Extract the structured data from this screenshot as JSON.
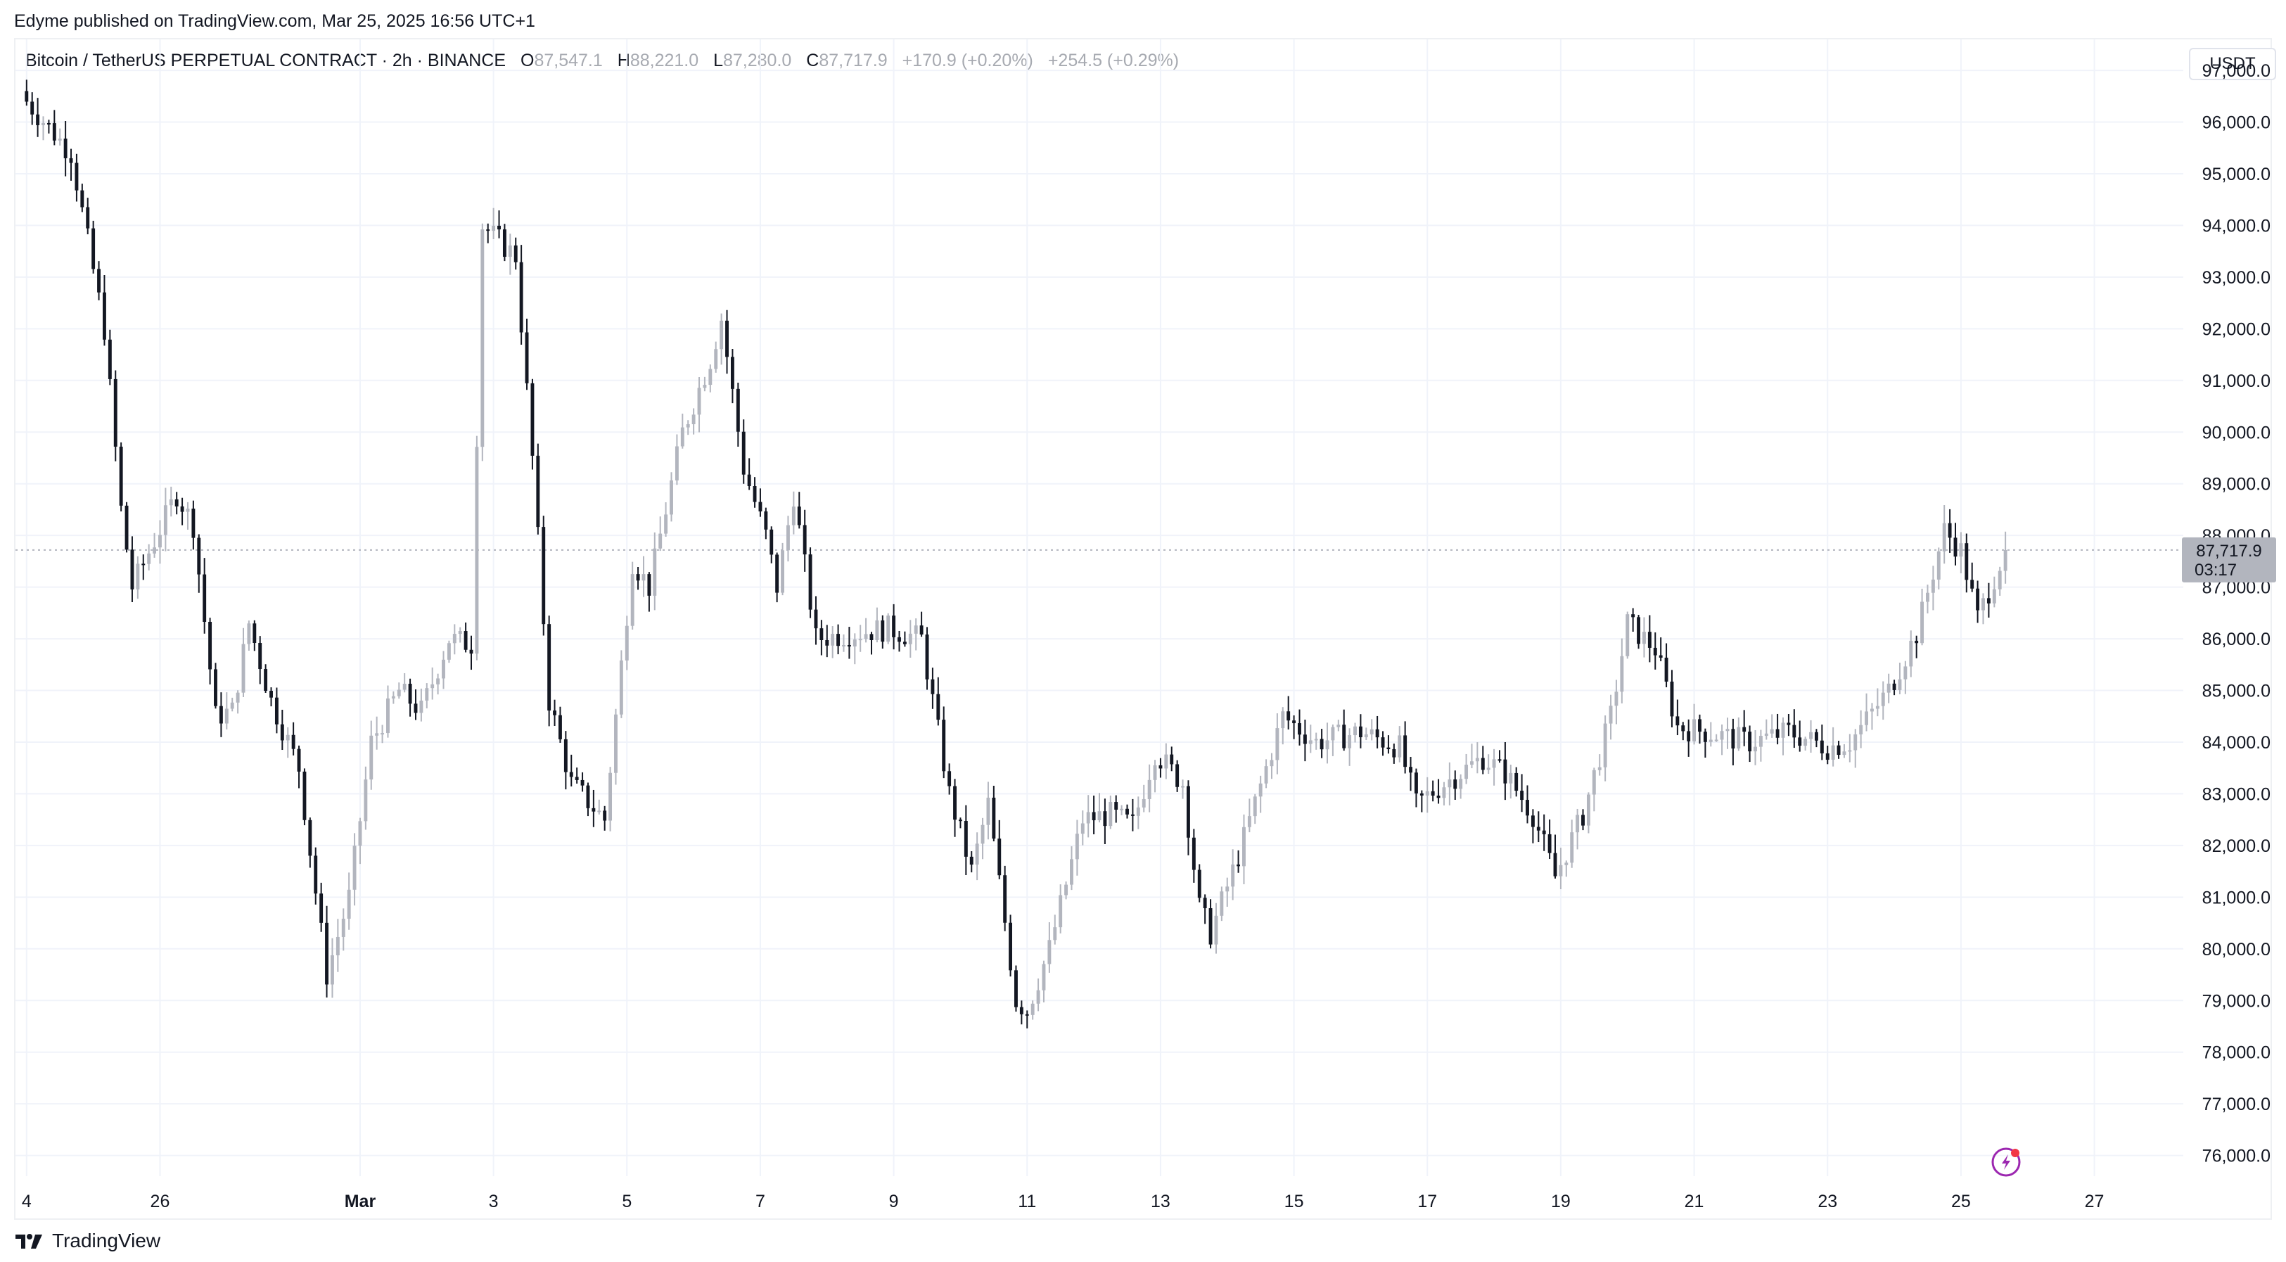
{
  "header": {
    "published_by": "Edyme published on TradingView.com, Mar 25, 2025 16:56 UTC+1"
  },
  "legend": {
    "symbol": "Bitcoin / TetherUS PERPETUAL CONTRACT · 2h · BINANCE",
    "open_label": "O",
    "open": "87,547.1",
    "high_label": "H",
    "high": "88,221.0",
    "low_label": "L",
    "low": "87,280.0",
    "close_label": "C",
    "close": "87,717.9",
    "change": "+170.9 (+0.20%)",
    "change2": "+254.5 (+0.29%)"
  },
  "currency": "USDT",
  "price_tag": {
    "price": "87,717.9",
    "countdown": "03:17"
  },
  "footer": {
    "brand": "TradingView"
  },
  "colors": {
    "up": "#b2b5be",
    "down": "#131722",
    "grid": "#f0f3fa",
    "price_line": "#b2b5be",
    "flash": "#9c27b0",
    "flash_dot": "#f23645"
  },
  "icons": {
    "flash": "lightning-icon",
    "logo": "tradingview-logo-icon"
  },
  "chart_data": {
    "type": "candlestick",
    "interval": "2h",
    "y_axis": {
      "ticks": [
        76000,
        77000,
        78000,
        79000,
        80000,
        81000,
        82000,
        83000,
        84000,
        85000,
        86000,
        87000,
        88000,
        89000,
        90000,
        91000,
        92000,
        93000,
        94000,
        95000,
        96000,
        97000
      ],
      "tick_labels": [
        "76,000.0",
        "77,000.0",
        "78,000.0",
        "79,000.0",
        "80,000.0",
        "81,000.0",
        "82,000.0",
        "83,000.0",
        "84,000.0",
        "85,000.0",
        "86,000.0",
        "87,000.0",
        "88,000.0",
        "89,000.0",
        "90,000.0",
        "91,000.0",
        "92,000.0",
        "93,000.0",
        "94,000.0",
        "95,000.0",
        "96,000.0",
        "97,000.0"
      ],
      "range": [
        75600,
        97600
      ]
    },
    "x_axis": {
      "ticks": [
        {
          "label": "4",
          "date": "2025-02-24",
          "bold": false
        },
        {
          "label": "26",
          "date": "2025-02-26",
          "bold": false
        },
        {
          "label": "Mar",
          "date": "2025-03-01",
          "bold": true
        },
        {
          "label": "3",
          "date": "2025-03-03",
          "bold": false
        },
        {
          "label": "5",
          "date": "2025-03-05",
          "bold": false
        },
        {
          "label": "7",
          "date": "2025-03-07",
          "bold": false
        },
        {
          "label": "9",
          "date": "2025-03-09",
          "bold": false
        },
        {
          "label": "11",
          "date": "2025-03-11",
          "bold": false
        },
        {
          "label": "13",
          "date": "2025-03-13",
          "bold": false
        },
        {
          "label": "15",
          "date": "2025-03-15",
          "bold": false
        },
        {
          "label": "17",
          "date": "2025-03-17",
          "bold": false
        },
        {
          "label": "19",
          "date": "2025-03-19",
          "bold": false
        },
        {
          "label": "21",
          "date": "2025-03-21",
          "bold": false
        },
        {
          "label": "23",
          "date": "2025-03-23",
          "bold": false
        },
        {
          "label": "25",
          "date": "2025-03-25",
          "bold": false
        },
        {
          "label": "27",
          "date": "2025-03-27",
          "bold": false
        }
      ]
    },
    "last_price": 87717.9,
    "waypoints": [
      {
        "date": "2025-02-24T00:00",
        "price": 96400
      },
      {
        "date": "2025-02-24T16:00",
        "price": 95400
      },
      {
        "date": "2025-02-25T04:00",
        "price": 92000
      },
      {
        "date": "2025-02-25T10:00",
        "price": 88500
      },
      {
        "date": "2025-02-25T14:00",
        "price": 87000
      },
      {
        "date": "2025-02-26T06:00",
        "price": 88800
      },
      {
        "date": "2025-02-26T12:00",
        "price": 88200
      },
      {
        "date": "2025-02-26T20:00",
        "price": 84500
      },
      {
        "date": "2025-02-27T02:00",
        "price": 84600
      },
      {
        "date": "2025-02-27T08:00",
        "price": 86300
      },
      {
        "date": "2025-02-27T16:00",
        "price": 84800
      },
      {
        "date": "2025-02-28T02:00",
        "price": 83500
      },
      {
        "date": "2025-02-28T12:00",
        "price": 79500
      },
      {
        "date": "2025-02-28T20:00",
        "price": 81000
      },
      {
        "date": "2025-03-01T04:00",
        "price": 84000
      },
      {
        "date": "2025-03-01T14:00",
        "price": 85000
      },
      {
        "date": "2025-03-01T22:00",
        "price": 84600
      },
      {
        "date": "2025-03-02T08:00",
        "price": 86000
      },
      {
        "date": "2025-03-02T16:00",
        "price": 85900
      },
      {
        "date": "2025-03-02T20:00",
        "price": 94000
      },
      {
        "date": "2025-03-03T08:00",
        "price": 93400
      },
      {
        "date": "2025-03-03T14:00",
        "price": 89500
      },
      {
        "date": "2025-03-03T20:00",
        "price": 84800
      },
      {
        "date": "2025-03-04T04:00",
        "price": 83200
      },
      {
        "date": "2025-03-04T16:00",
        "price": 82500
      },
      {
        "date": "2025-03-05T02:00",
        "price": 87500
      },
      {
        "date": "2025-03-05T08:00",
        "price": 87000
      },
      {
        "date": "2025-03-05T20:00",
        "price": 90000
      },
      {
        "date": "2025-03-06T06:00",
        "price": 91400
      },
      {
        "date": "2025-03-06T10:00",
        "price": 92200
      },
      {
        "date": "2025-03-06T18:00",
        "price": 89300
      },
      {
        "date": "2025-03-07T02:00",
        "price": 88000
      },
      {
        "date": "2025-03-07T06:00",
        "price": 87000
      },
      {
        "date": "2025-03-07T12:00",
        "price": 88800
      },
      {
        "date": "2025-03-07T20:00",
        "price": 86000
      },
      {
        "date": "2025-03-08T08:00",
        "price": 86100
      },
      {
        "date": "2025-03-08T22:00",
        "price": 86200
      },
      {
        "date": "2025-03-09T10:00",
        "price": 86000
      },
      {
        "date": "2025-03-09T20:00",
        "price": 83000
      },
      {
        "date": "2025-03-10T04:00",
        "price": 81500
      },
      {
        "date": "2025-03-10T10:00",
        "price": 82800
      },
      {
        "date": "2025-03-10T20:00",
        "price": 79000
      },
      {
        "date": "2025-03-11T00:00",
        "price": 78800
      },
      {
        "date": "2025-03-11T08:00",
        "price": 80000
      },
      {
        "date": "2025-03-11T20:00",
        "price": 82500
      },
      {
        "date": "2025-03-12T06:00",
        "price": 82600
      },
      {
        "date": "2025-03-12T14:00",
        "price": 82400
      },
      {
        "date": "2025-03-12T22:00",
        "price": 83800
      },
      {
        "date": "2025-03-13T08:00",
        "price": 83200
      },
      {
        "date": "2025-03-13T14:00",
        "price": 80800
      },
      {
        "date": "2025-03-13T18:00",
        "price": 80300
      },
      {
        "date": "2025-03-14T04:00",
        "price": 81800
      },
      {
        "date": "2025-03-14T14:00",
        "price": 83500
      },
      {
        "date": "2025-03-14T20:00",
        "price": 84500
      },
      {
        "date": "2025-03-15T08:00",
        "price": 84000
      },
      {
        "date": "2025-03-16T00:00",
        "price": 84200
      },
      {
        "date": "2025-03-16T14:00",
        "price": 83900
      },
      {
        "date": "2025-03-16T20:00",
        "price": 82800
      },
      {
        "date": "2025-03-17T06:00",
        "price": 83200
      },
      {
        "date": "2025-03-17T20:00",
        "price": 83700
      },
      {
        "date": "2025-03-18T04:00",
        "price": 83400
      },
      {
        "date": "2025-03-18T14:00",
        "price": 82600
      },
      {
        "date": "2025-03-18T22:00",
        "price": 81400
      },
      {
        "date": "2025-03-19T08:00",
        "price": 82600
      },
      {
        "date": "2025-03-19T18:00",
        "price": 84500
      },
      {
        "date": "2025-03-20T00:00",
        "price": 86300
      },
      {
        "date": "2025-03-20T10:00",
        "price": 85800
      },
      {
        "date": "2025-03-20T18:00",
        "price": 84300
      },
      {
        "date": "2025-03-21T04:00",
        "price": 84200
      },
      {
        "date": "2025-03-21T20:00",
        "price": 84000
      },
      {
        "date": "2025-03-22T10:00",
        "price": 84200
      },
      {
        "date": "2025-03-23T00:00",
        "price": 83900
      },
      {
        "date": "2025-03-23T08:00",
        "price": 84000
      },
      {
        "date": "2025-03-23T22:00",
        "price": 85000
      },
      {
        "date": "2025-03-24T08:00",
        "price": 86100
      },
      {
        "date": "2025-03-24T18:00",
        "price": 88100
      },
      {
        "date": "2025-03-25T00:00",
        "price": 87700
      },
      {
        "date": "2025-03-25T06:00",
        "price": 86400
      },
      {
        "date": "2025-03-25T16:00",
        "price": 87717.9
      }
    ]
  }
}
